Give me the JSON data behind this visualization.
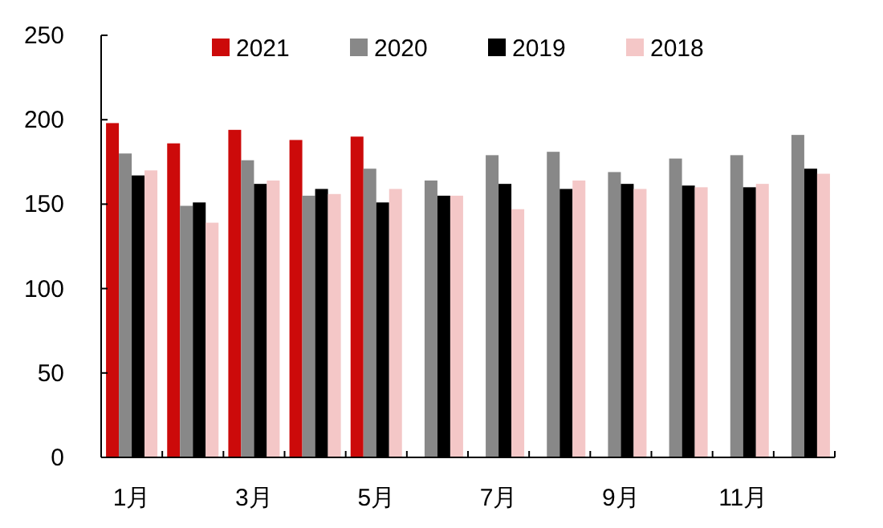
{
  "chart_data": {
    "type": "bar",
    "categories": [
      "1月",
      null,
      "3月",
      null,
      "5月",
      null,
      "7月",
      null,
      "9月",
      null,
      "11月",
      null
    ],
    "series": [
      {
        "name": "2021",
        "color": "#cc0a0a",
        "values": [
          198,
          186,
          194,
          188,
          190,
          null,
          null,
          null,
          null,
          null,
          null,
          null
        ]
      },
      {
        "name": "2020",
        "color": "#888888",
        "values": [
          180,
          149,
          176,
          155,
          171,
          164,
          179,
          181,
          169,
          177,
          179,
          191
        ]
      },
      {
        "name": "2019",
        "color": "#000000",
        "values": [
          167,
          151,
          162,
          159,
          151,
          155,
          162,
          159,
          162,
          161,
          160,
          171
        ]
      },
      {
        "name": "2018",
        "color": "#f4c7c7",
        "values": [
          170,
          139,
          164,
          156,
          159,
          155,
          147,
          164,
          159,
          160,
          162,
          168
        ]
      }
    ],
    "ylim": [
      0,
      250
    ],
    "yticks": [
      0,
      50,
      100,
      150,
      200,
      250
    ],
    "legend": "top",
    "grid": false
  }
}
